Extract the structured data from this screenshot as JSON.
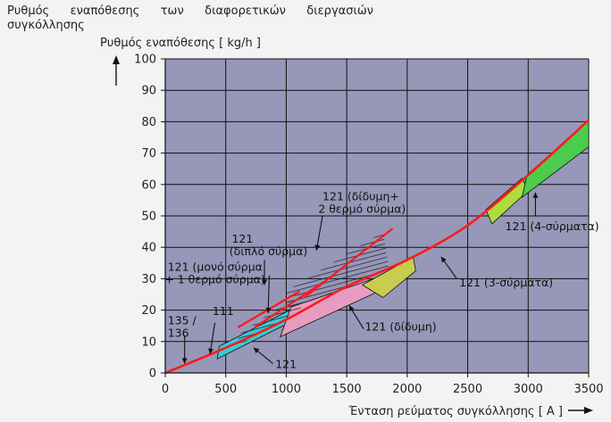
{
  "chart_data": {
    "type": "area",
    "title": "Ρυθμός εναπόθεσης των διαφορετικών διεργασιών συγκόλλησης",
    "ylabel": "Ρυθμός εναπόθεσης [ kg/h ]",
    "xlabel": "Ένταση ρεύματος συγκόλλησης [ A ]",
    "xlim": [
      0,
      3500
    ],
    "ylim": [
      0,
      100
    ],
    "x_ticks": [
      0,
      500,
      1000,
      1500,
      2000,
      2500,
      3000,
      3500
    ],
    "y_ticks": [
      0,
      10,
      20,
      30,
      40,
      50,
      60,
      70,
      80,
      90,
      100
    ],
    "grid": true,
    "background": "#9797b9",
    "envelope_curve": {
      "color": "#ff1a1a",
      "points": [
        [
          0,
          0
        ],
        [
          500,
          8
        ],
        [
          1000,
          17
        ],
        [
          1500,
          27.5
        ],
        [
          2000,
          36
        ],
        [
          2500,
          47
        ],
        [
          3000,
          63
        ],
        [
          3500,
          80.5
        ]
      ]
    },
    "bands": [
      {
        "id": "single-wire",
        "color": "#3cc8d2",
        "polygon": [
          [
            430,
            4.5
          ],
          [
            1130,
            18
          ],
          [
            1130,
            22
          ],
          [
            445,
            8.5
          ]
        ]
      },
      {
        "id": "twin",
        "color": "#e89cc0",
        "polygon": [
          [
            950,
            11.5
          ],
          [
            1820,
            27
          ],
          [
            1800,
            31
          ],
          [
            1040,
            21
          ]
        ]
      },
      {
        "id": "three-wire",
        "color": "#c8cc50",
        "polygon": [
          [
            1800,
            24
          ],
          [
            2070,
            32.5
          ],
          [
            2050,
            37
          ],
          [
            1630,
            28
          ]
        ]
      },
      {
        "id": "three-wire-green",
        "color": "#aedc3c",
        "polygon": [
          [
            2700,
            47.5
          ],
          [
            3000,
            58
          ],
          [
            2950,
            62
          ],
          [
            2650,
            52
          ]
        ]
      },
      {
        "id": "four-wire",
        "color": "#4ccc4c",
        "polygon": [
          [
            2950,
            56
          ],
          [
            3500,
            72
          ],
          [
            3500,
            80.5
          ],
          [
            2990,
            63
          ]
        ]
      }
    ],
    "hatched_regions": [
      {
        "id": "hot-wire",
        "polygon": [
          [
            600,
            8.5
          ],
          [
            1120,
            20.5
          ],
          [
            1120,
            25.5
          ],
          [
            600,
            12
          ]
        ]
      },
      {
        "id": "twin-hot-wire",
        "polygon": [
          [
            1020,
            20
          ],
          [
            1850,
            33
          ],
          [
            1800,
            45
          ],
          [
            1000,
            26
          ]
        ]
      }
    ],
    "process_lines": [
      {
        "id": "single-wire-hot-wire",
        "color": "#ff1a1a",
        "points": [
          [
            600,
            14.5
          ],
          [
            1110,
            26
          ]
        ]
      },
      {
        "id": "twin-wire",
        "color": "#ff1a1a",
        "points": [
          [
            740,
            14.5
          ],
          [
            1310,
            29
          ]
        ]
      },
      {
        "id": "twin-hot-wire",
        "color": "#ff1a1a",
        "points": [
          [
            1150,
            24
          ],
          [
            1880,
            46
          ]
        ]
      }
    ],
    "annotations": [
      {
        "text": "121 (δίδυμη+",
        "x": 1300,
        "y": 55
      },
      {
        "text": "2 θερμό σύρμα)",
        "x": 1265,
        "y": 51
      },
      {
        "text": "121",
        "x": 550,
        "y": 41.5
      },
      {
        "text": "(διπλό σύρμα)",
        "x": 530,
        "y": 37.5
      },
      {
        "text": "121 (μονό σύρμα",
        "x": 20,
        "y": 32.5
      },
      {
        "text": "+ 1 θερμό σύρμα)",
        "x": -5,
        "y": 28.5
      },
      {
        "text": "135 /",
        "x": 20,
        "y": 15.5
      },
      {
        "text": "136",
        "x": 20,
        "y": 11.5
      },
      {
        "text": "111",
        "x": 390,
        "y": 18.5
      },
      {
        "text": "121",
        "x": 910,
        "y": 1.5
      },
      {
        "text": "121 (δίδυμη)",
        "x": 1650,
        "y": 13.5
      },
      {
        "text": "121 (3-σύρματα)",
        "x": 2430,
        "y": 27.5
      },
      {
        "text": "121 (4-σύρματα)",
        "x": 2810,
        "y": 45.5
      }
    ],
    "leaders": [
      {
        "to": [
          1250,
          39
        ],
        "from": [
          1300,
          50
        ]
      },
      {
        "to": [
          850,
          19
        ],
        "from": [
          860,
          31
        ]
      },
      {
        "to": [
          820,
          28
        ],
        "from": [
          820,
          36
        ]
      },
      {
        "to": [
          160,
          3
        ],
        "from": [
          160,
          12
        ]
      },
      {
        "to": [
          370,
          6
        ],
        "from": [
          410,
          16
        ]
      },
      {
        "to": [
          730,
          8
        ],
        "from": [
          890,
          3
        ]
      },
      {
        "to": [
          1520,
          21.5
        ],
        "from": [
          1640,
          14
        ]
      },
      {
        "to": [
          2280,
          37
        ],
        "from": [
          2410,
          30
        ]
      },
      {
        "to": [
          3060,
          57.5
        ],
        "from": [
          3060,
          50
        ]
      }
    ],
    "axis_arrows": true
  }
}
